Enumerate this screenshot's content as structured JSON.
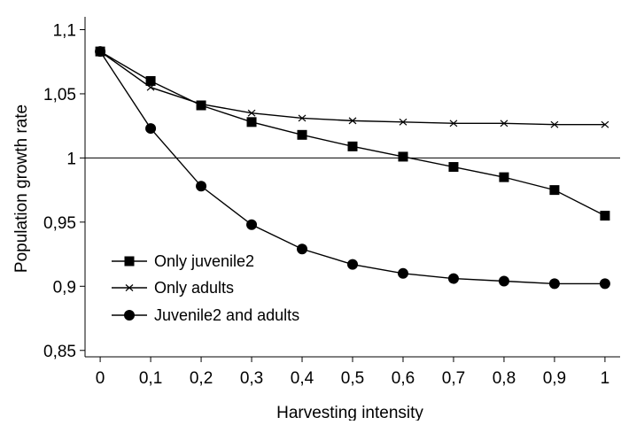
{
  "chart_data": {
    "type": "line",
    "xlabel": "Harvesting intensity",
    "ylabel": "Population growth rate",
    "x": [
      0,
      0.1,
      0.2,
      0.3,
      0.4,
      0.5,
      0.6,
      0.7,
      0.8,
      0.9,
      1
    ],
    "x_tick_labels": [
      "0",
      "0,1",
      "0,2",
      "0,3",
      "0,4",
      "0,5",
      "0,6",
      "0,7",
      "0,8",
      "0,9",
      "1"
    ],
    "y_ticks": [
      0.85,
      0.9,
      0.95,
      1.0,
      1.05,
      1.1
    ],
    "y_tick_labels": [
      "0,85",
      "0,9",
      "0,95",
      "1",
      "1,05",
      "1,1"
    ],
    "xlim": [
      -0.03,
      1.03
    ],
    "ylim": [
      0.845,
      1.11
    ],
    "reference_line_y": 1.0,
    "grid": false,
    "legend_position": "lower-left",
    "series": [
      {
        "name": "Only juvenile2",
        "marker": "square",
        "values": [
          1.083,
          1.06,
          1.041,
          1.028,
          1.018,
          1.009,
          1.001,
          0.993,
          0.985,
          0.975,
          0.955
        ]
      },
      {
        "name": "Only adults",
        "marker": "x",
        "values": [
          1.083,
          1.055,
          1.042,
          1.035,
          1.031,
          1.029,
          1.028,
          1.027,
          1.027,
          1.026,
          1.026
        ]
      },
      {
        "name": "Juvenile2 and adults",
        "marker": "circle",
        "values": [
          1.083,
          1.023,
          0.978,
          0.948,
          0.929,
          0.917,
          0.91,
          0.906,
          0.904,
          0.902,
          0.902
        ]
      }
    ]
  }
}
